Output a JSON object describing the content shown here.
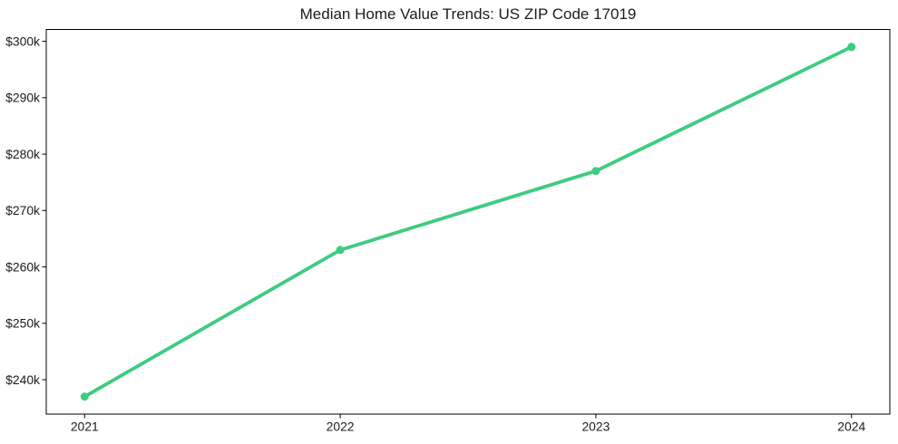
{
  "chart_data": {
    "type": "line",
    "title": "Median Home Value Trends: US ZIP Code 17019",
    "xlabel": "",
    "ylabel": "",
    "x": [
      2021,
      2022,
      2023,
      2024
    ],
    "xtick_labels": [
      "2021",
      "2022",
      "2023",
      "2024"
    ],
    "series": [
      {
        "name": "Median Home Value",
        "values": [
          237000,
          263000,
          277000,
          299000
        ]
      }
    ],
    "ytick_values": [
      240000,
      250000,
      260000,
      270000,
      280000,
      290000,
      300000
    ],
    "ytick_labels": [
      "$240k",
      "$250k",
      "$260k",
      "$270k",
      "$280k",
      "$290k",
      "$300k"
    ],
    "xlim": [
      2020.85,
      2024.15
    ],
    "ylim": [
      233900,
      302100
    ],
    "grid": false,
    "legend": "none",
    "marker": "circle",
    "colors": {
      "line": "#3dcc80",
      "marker": "#3dcc80",
      "axis": "#000000",
      "text": "#1c1c1c",
      "background": "#ffffff"
    }
  }
}
